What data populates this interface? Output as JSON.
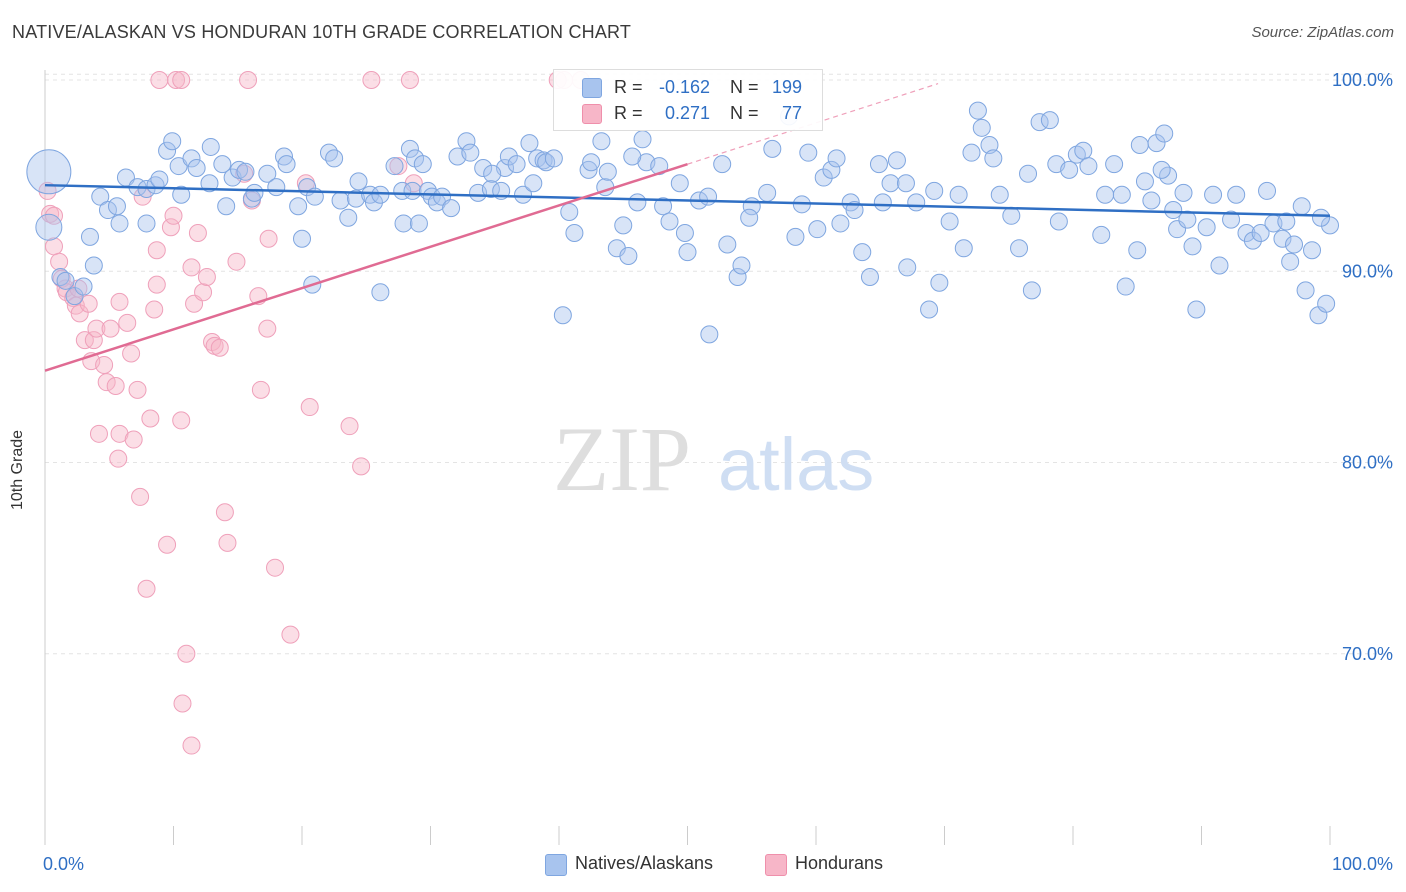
{
  "header": {
    "title": "NATIVE/ALASKAN VS HONDURAN 10TH GRADE CORRELATION CHART",
    "source": "Source: ZipAtlas.com"
  },
  "watermark": {
    "zip": "ZIP",
    "atlas": "atlas"
  },
  "stats_box": {
    "rows": [
      {
        "r_label": "R =",
        "r_value": "-0.162",
        "n_label": "N =",
        "n_value": "199",
        "color": "#a8c4ee"
      },
      {
        "r_label": "R =",
        "r_value": "0.271",
        "n_label": "N =",
        "n_value": "77",
        "color": "#f7b6c8"
      }
    ]
  },
  "legend": {
    "items": [
      {
        "label": "Natives/Alaskans",
        "color": "#a8c4ee"
      },
      {
        "label": "Hondurans",
        "color": "#f7b6c8"
      }
    ]
  },
  "chart_data": {
    "type": "scatter",
    "title": "NATIVE/ALASKAN VS HONDURAN 10TH GRADE CORRELATION CHART",
    "xlabel": "",
    "ylabel": "10th Grade",
    "xlim": [
      0,
      100
    ],
    "ylim": [
      61,
      101
    ],
    "x_tick_labels": [
      "0.0%",
      "100.0%"
    ],
    "y_ticks": [
      70,
      80,
      90,
      100
    ],
    "y_tick_labels": [
      "70.0%",
      "80.0%",
      "90.0%",
      "100.0%"
    ],
    "grid": true,
    "legend_position": "bottom-center",
    "colors": {
      "blue_fill": "#a8c4ee",
      "blue_line": "#2f6fc4",
      "pink_fill": "#f7b6c8",
      "pink_line": "#e06b93",
      "tick_text": "#2f6fc4"
    },
    "series": [
      {
        "name": "Natives/Alaskans",
        "r": -0.162,
        "n": 199,
        "trend": {
          "x": [
            0,
            100
          ],
          "y": [
            94.5,
            92.9
          ]
        },
        "points": [
          [
            0.3,
            95.2
          ],
          [
            0.3,
            92.3
          ],
          [
            1.2,
            89.7
          ],
          [
            1.6,
            89.5
          ],
          [
            2.3,
            88.7
          ],
          [
            3,
            89.2
          ],
          [
            3.5,
            91.8
          ],
          [
            3.8,
            90.3
          ],
          [
            4.3,
            93.9
          ],
          [
            4.9,
            93.2
          ],
          [
            5.6,
            93.4
          ],
          [
            5.8,
            92.5
          ],
          [
            6.3,
            94.9
          ],
          [
            7.2,
            94.4
          ],
          [
            7.9,
            94.3
          ],
          [
            7.9,
            92.5
          ],
          [
            8.6,
            94.5
          ],
          [
            8.9,
            94.8
          ],
          [
            9.5,
            96.3
          ],
          [
            9.9,
            96.8
          ],
          [
            10.4,
            95.5
          ],
          [
            10.6,
            94
          ],
          [
            11.4,
            95.9
          ],
          [
            11.8,
            95.4
          ],
          [
            12.8,
            94.6
          ],
          [
            12.9,
            96.5
          ],
          [
            13.8,
            95.6
          ],
          [
            14.1,
            93.4
          ],
          [
            14.6,
            94.9
          ],
          [
            15.1,
            95.3
          ],
          [
            15.6,
            95.2
          ],
          [
            16.1,
            93.8
          ],
          [
            16.3,
            94.1
          ],
          [
            17.3,
            95.1
          ],
          [
            18,
            94.4
          ],
          [
            18.6,
            96
          ],
          [
            18.8,
            95.6
          ],
          [
            19.7,
            93.4
          ],
          [
            20,
            91.7
          ],
          [
            20.4,
            94.4
          ],
          [
            20.8,
            89.3
          ],
          [
            21,
            93.9
          ],
          [
            22.1,
            96.2
          ],
          [
            22.5,
            95.9
          ],
          [
            23,
            93.7
          ],
          [
            23.6,
            92.8
          ],
          [
            24.2,
            93.8
          ],
          [
            24.4,
            94.7
          ],
          [
            25.3,
            94
          ],
          [
            25.6,
            93.6
          ],
          [
            26.1,
            94
          ],
          [
            26.1,
            88.9
          ],
          [
            27.2,
            95.5
          ],
          [
            27.8,
            94.2
          ],
          [
            27.9,
            92.5
          ],
          [
            28.4,
            96.4
          ],
          [
            28.6,
            94.2
          ],
          [
            28.8,
            95.9
          ],
          [
            29.1,
            92.5
          ],
          [
            29.8,
            94.2
          ],
          [
            30.1,
            93.9
          ],
          [
            30.5,
            93.6
          ],
          [
            30.9,
            93.9
          ],
          [
            31.6,
            93.3
          ],
          [
            32.1,
            96
          ],
          [
            32.8,
            96.8
          ],
          [
            33.1,
            96.2
          ],
          [
            33.7,
            94.1
          ],
          [
            34.1,
            95.4
          ],
          [
            34.7,
            94.3
          ],
          [
            35.5,
            94.2
          ],
          [
            35.8,
            95.4
          ],
          [
            36.1,
            96
          ],
          [
            36.7,
            95.6
          ],
          [
            37.2,
            94
          ],
          [
            37.7,
            96.7
          ],
          [
            38.3,
            95.9
          ],
          [
            38.8,
            95.8
          ],
          [
            39,
            95.7
          ],
          [
            39.6,
            95.9
          ],
          [
            40.3,
            87.7
          ],
          [
            40.8,
            93.1
          ],
          [
            41.2,
            92
          ],
          [
            42.3,
            95.3
          ],
          [
            42.5,
            95.7
          ],
          [
            43.3,
            96.8
          ],
          [
            43.6,
            94.4
          ],
          [
            43.8,
            95.2
          ],
          [
            44.5,
            91.2
          ],
          [
            45,
            92.4
          ],
          [
            45.4,
            90.8
          ],
          [
            46.1,
            93.6
          ],
          [
            46.5,
            96.9
          ],
          [
            46.8,
            95.7
          ],
          [
            47.8,
            95.5
          ],
          [
            48.1,
            93.4
          ],
          [
            48.6,
            92.6
          ],
          [
            49.4,
            94.6
          ],
          [
            50,
            91
          ],
          [
            50.9,
            93.7
          ],
          [
            51.6,
            93.9
          ],
          [
            51.7,
            86.7
          ],
          [
            52.7,
            95.6
          ],
          [
            53.1,
            91.4
          ],
          [
            53.9,
            89.7
          ],
          [
            54.2,
            90.3
          ],
          [
            55,
            93.4
          ],
          [
            56.2,
            94.1
          ],
          [
            56.6,
            96.4
          ],
          [
            57.9,
            98.1
          ],
          [
            58.4,
            91.8
          ],
          [
            59.4,
            96.2
          ],
          [
            60.1,
            92.2
          ],
          [
            60.6,
            94.9
          ],
          [
            61.2,
            95.3
          ],
          [
            61.6,
            95.9
          ],
          [
            62.7,
            93.6
          ],
          [
            63,
            93.2
          ],
          [
            63.6,
            91
          ],
          [
            64.9,
            95.6
          ],
          [
            64.2,
            89.7
          ],
          [
            65.2,
            93.6
          ],
          [
            65.8,
            94.6
          ],
          [
            66.3,
            95.8
          ],
          [
            67,
            94.6
          ],
          [
            67.8,
            93.6
          ],
          [
            68.8,
            88
          ],
          [
            69.2,
            94.2
          ],
          [
            69.6,
            89.4
          ],
          [
            70.4,
            92.6
          ],
          [
            71.1,
            94
          ],
          [
            71.5,
            91.2
          ],
          [
            72.1,
            96.2
          ],
          [
            72.6,
            98.4
          ],
          [
            72.9,
            97.5
          ],
          [
            73.5,
            96.6
          ],
          [
            73.8,
            95.9
          ],
          [
            74.3,
            94
          ],
          [
            75.2,
            92.9
          ],
          [
            75.8,
            91.2
          ],
          [
            76.5,
            95.1
          ],
          [
            76.8,
            89
          ],
          [
            77.4,
            97.8
          ],
          [
            78.2,
            97.9
          ],
          [
            78.7,
            95.6
          ],
          [
            78.9,
            92.6
          ],
          [
            80.3,
            96.1
          ],
          [
            80.8,
            96.3
          ],
          [
            81.2,
            95.5
          ],
          [
            82.2,
            91.9
          ],
          [
            82.5,
            94
          ],
          [
            83.2,
            95.6
          ],
          [
            83.8,
            94
          ],
          [
            84.1,
            89.2
          ],
          [
            85.2,
            96.6
          ],
          [
            85.6,
            94.7
          ],
          [
            86.1,
            93.7
          ],
          [
            86.5,
            96.7
          ],
          [
            87.4,
            95
          ],
          [
            87.8,
            93.2
          ],
          [
            88.1,
            92.2
          ],
          [
            88.6,
            94.1
          ],
          [
            89.3,
            91.3
          ],
          [
            89.6,
            88
          ],
          [
            90.4,
            92.3
          ],
          [
            90.9,
            94
          ],
          [
            91.4,
            90.3
          ],
          [
            92.3,
            92.7
          ],
          [
            92.7,
            94
          ],
          [
            93.5,
            92
          ],
          [
            94,
            91.6
          ],
          [
            94.6,
            92
          ],
          [
            95.1,
            94.2
          ],
          [
            95.6,
            92.5
          ],
          [
            96.3,
            91.7
          ],
          [
            96.6,
            92.6
          ],
          [
            97.2,
            91.4
          ],
          [
            97.8,
            93.4
          ],
          [
            98.1,
            89
          ],
          [
            98.6,
            91.1
          ],
          [
            99.1,
            87.7
          ],
          [
            99.7,
            88.3
          ],
          [
            100,
            92.4
          ],
          [
            29.4,
            95.6
          ],
          [
            34.8,
            95.1
          ],
          [
            38,
            94.6
          ],
          [
            45.7,
            96
          ],
          [
            49.8,
            92
          ],
          [
            54.8,
            92.8
          ],
          [
            58.9,
            93.5
          ],
          [
            61.9,
            92.5
          ],
          [
            67.1,
            90.2
          ],
          [
            79.7,
            95.3
          ],
          [
            85,
            91.1
          ],
          [
            86.9,
            95.3
          ],
          [
            88.9,
            92.7
          ],
          [
            87.1,
            97.2
          ],
          [
            96.9,
            90.5
          ],
          [
            99.3,
            92.8
          ]
        ]
      },
      {
        "name": "Hondurans",
        "r": 0.271,
        "n": 77,
        "trend": {
          "x": [
            0,
            50
          ],
          "y": [
            84.8,
            95.6
          ]
        },
        "points": [
          [
            0.2,
            94.2
          ],
          [
            0.4,
            93
          ],
          [
            0.7,
            92.9
          ],
          [
            0.7,
            91.3
          ],
          [
            1.1,
            90.5
          ],
          [
            1.3,
            89.6
          ],
          [
            1.6,
            89.1
          ],
          [
            1.7,
            88.9
          ],
          [
            2.2,
            88.6
          ],
          [
            2.4,
            88.2
          ],
          [
            2.6,
            89.1
          ],
          [
            2.7,
            87.8
          ],
          [
            3.1,
            86.4
          ],
          [
            3.4,
            88.3
          ],
          [
            3.6,
            85.3
          ],
          [
            3.8,
            86.4
          ],
          [
            4,
            87
          ],
          [
            4.2,
            81.5
          ],
          [
            4.6,
            85.1
          ],
          [
            4.8,
            84.2
          ],
          [
            5.1,
            87
          ],
          [
            5.5,
            84
          ],
          [
            5.7,
            80.2
          ],
          [
            5.8,
            81.5
          ],
          [
            5.8,
            88.4
          ],
          [
            6.4,
            87.3
          ],
          [
            6.7,
            85.7
          ],
          [
            6.9,
            81.2
          ],
          [
            7.4,
            78.2
          ],
          [
            7.2,
            83.8
          ],
          [
            7.6,
            93.9
          ],
          [
            7.9,
            73.4
          ],
          [
            8.2,
            82.3
          ],
          [
            8.5,
            88
          ],
          [
            8.7,
            89.3
          ],
          [
            8.7,
            91.1
          ],
          [
            8.9,
            100
          ],
          [
            9.5,
            75.7
          ],
          [
            9.8,
            92.3
          ],
          [
            10,
            92.9
          ],
          [
            10.2,
            100
          ],
          [
            10.6,
            100
          ],
          [
            10.6,
            82.2
          ],
          [
            10.7,
            67.4
          ],
          [
            11,
            70
          ],
          [
            11.4,
            65.2
          ],
          [
            11.4,
            90.2
          ],
          [
            11.6,
            88.3
          ],
          [
            11.9,
            92
          ],
          [
            12.3,
            88.9
          ],
          [
            12.6,
            89.7
          ],
          [
            13,
            86.3
          ],
          [
            13.2,
            86.1
          ],
          [
            13.6,
            86
          ],
          [
            14,
            77.4
          ],
          [
            14.2,
            75.8
          ],
          [
            14.9,
            90.5
          ],
          [
            15.5,
            95.1
          ],
          [
            15.8,
            100
          ],
          [
            16.1,
            93.7
          ],
          [
            16.6,
            88.7
          ],
          [
            16.8,
            83.8
          ],
          [
            17.3,
            87
          ],
          [
            17.4,
            91.7
          ],
          [
            17.9,
            74.5
          ],
          [
            19.1,
            71
          ],
          [
            20.3,
            94.6
          ],
          [
            20.6,
            82.9
          ],
          [
            23.7,
            81.9
          ],
          [
            24.6,
            79.8
          ],
          [
            25.4,
            100
          ],
          [
            27.5,
            95.5
          ],
          [
            28.4,
            100
          ],
          [
            28.7,
            94.6
          ],
          [
            39.9,
            100
          ],
          [
            40.4,
            100
          ],
          [
            41.7,
            100
          ]
        ]
      }
    ]
  }
}
